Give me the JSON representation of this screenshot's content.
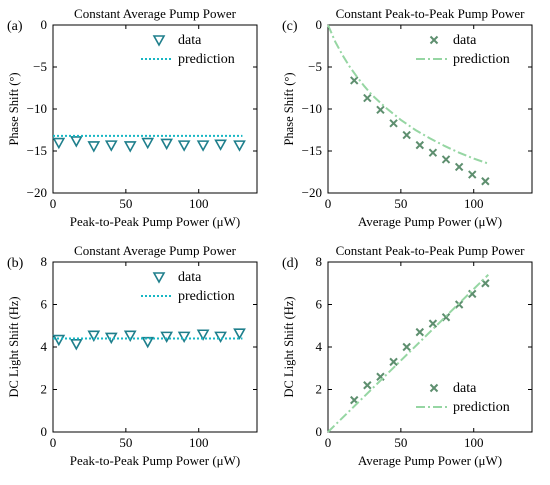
{
  "colors": {
    "panel_a_b_marker": "#1f7f8c",
    "panel_a_b_line": "#17b7c4",
    "panel_c_d_marker": "#5e8f6f",
    "panel_c_d_line": "#96d6a3",
    "axis": "#000000"
  },
  "chart_data": [
    {
      "panel_label": "(a)",
      "type": "scatter",
      "title": "Constant Average Pump Power",
      "xlabel": "Peak-to-Peak Pump Power (μW)",
      "ylabel": "Phase Shift (°)",
      "xlim": [
        0,
        140
      ],
      "ylim": [
        -20,
        0
      ],
      "xticks": [
        0,
        50,
        100
      ],
      "yticks": [
        0,
        -5,
        -10,
        -15,
        -20
      ],
      "legend_position": "top-right",
      "grid": false,
      "marker": "triangle-down",
      "series": [
        {
          "name": "data",
          "kind": "points",
          "x": [
            4,
            16,
            28,
            40,
            53,
            65,
            78,
            90,
            103,
            115,
            128
          ],
          "y": [
            -14.0,
            -13.8,
            -14.4,
            -14.3,
            -14.4,
            -14.0,
            -14.1,
            -14.3,
            -14.3,
            -14.2,
            -14.3
          ]
        },
        {
          "name": "prediction",
          "kind": "dotted-line",
          "x": [
            0,
            130
          ],
          "y": [
            -13.2,
            -13.2
          ]
        }
      ]
    },
    {
      "panel_label": "(b)",
      "type": "scatter",
      "title": "Constant Average Pump Power",
      "xlabel": "Peak-to-Peak Pump Power (μW)",
      "ylabel": "DC Light Shift (Hz)",
      "xlim": [
        0,
        140
      ],
      "ylim": [
        0,
        8
      ],
      "xticks": [
        0,
        50,
        100
      ],
      "yticks": [
        0,
        2,
        4,
        6,
        8
      ],
      "legend_position": "top-right",
      "grid": false,
      "marker": "triangle-down",
      "series": [
        {
          "name": "data",
          "kind": "points",
          "x": [
            4,
            16,
            28,
            40,
            53,
            65,
            78,
            90,
            103,
            115,
            128
          ],
          "y": [
            4.35,
            4.15,
            4.55,
            4.45,
            4.55,
            4.25,
            4.5,
            4.5,
            4.6,
            4.5,
            4.65
          ]
        },
        {
          "name": "prediction",
          "kind": "dotted-line",
          "x": [
            0,
            130
          ],
          "y": [
            4.4,
            4.4
          ]
        }
      ]
    },
    {
      "panel_label": "(c)",
      "type": "scatter",
      "title": "Constant Peak-to-Peak Pump Power",
      "xlabel": "Average Pump Power (μW)",
      "ylabel": "Phase Shift (°)",
      "xlim": [
        0,
        140
      ],
      "ylim": [
        -20,
        0
      ],
      "xticks": [
        0,
        50,
        100
      ],
      "yticks": [
        0,
        -5,
        -10,
        -15,
        -20
      ],
      "legend_position": "top-right",
      "grid": false,
      "marker": "x",
      "series": [
        {
          "name": "data",
          "kind": "points",
          "x": [
            18,
            27,
            36,
            45,
            54,
            63,
            72,
            81,
            90,
            99,
            108
          ],
          "y": [
            -6.6,
            -8.7,
            -10.1,
            -11.7,
            -13.1,
            -14.3,
            -15.2,
            -16.0,
            -16.9,
            -17.8,
            -18.6
          ]
        },
        {
          "name": "prediction",
          "kind": "dashdot-line",
          "x": [
            0,
            5,
            10,
            15,
            20,
            25,
            30,
            40,
            50,
            60,
            70,
            80,
            90,
            100,
            110
          ],
          "y": [
            0,
            -2.0,
            -3.6,
            -5.0,
            -6.2,
            -7.3,
            -8.3,
            -9.9,
            -11.3,
            -12.5,
            -13.5,
            -14.4,
            -15.2,
            -15.9,
            -16.5
          ]
        }
      ]
    },
    {
      "panel_label": "(d)",
      "type": "scatter",
      "title": "Constant Peak-to-Peak Pump Power",
      "xlabel": "Average Pump Power (μW)",
      "ylabel": "DC Light Shift (Hz)",
      "xlim": [
        0,
        140
      ],
      "ylim": [
        0,
        8
      ],
      "xticks": [
        0,
        50,
        100
      ],
      "yticks": [
        0,
        2,
        4,
        6,
        8
      ],
      "legend_position": "bottom-right",
      "grid": false,
      "marker": "x",
      "series": [
        {
          "name": "data",
          "kind": "points",
          "x": [
            18,
            27,
            36,
            45,
            54,
            63,
            72,
            81,
            90,
            99,
            108
          ],
          "y": [
            1.5,
            2.2,
            2.6,
            3.3,
            4.0,
            4.7,
            5.1,
            5.4,
            6.0,
            6.5,
            7.0
          ]
        },
        {
          "name": "prediction",
          "kind": "dashdot-line",
          "x": [
            0,
            110
          ],
          "y": [
            0,
            7.4
          ]
        }
      ]
    }
  ]
}
